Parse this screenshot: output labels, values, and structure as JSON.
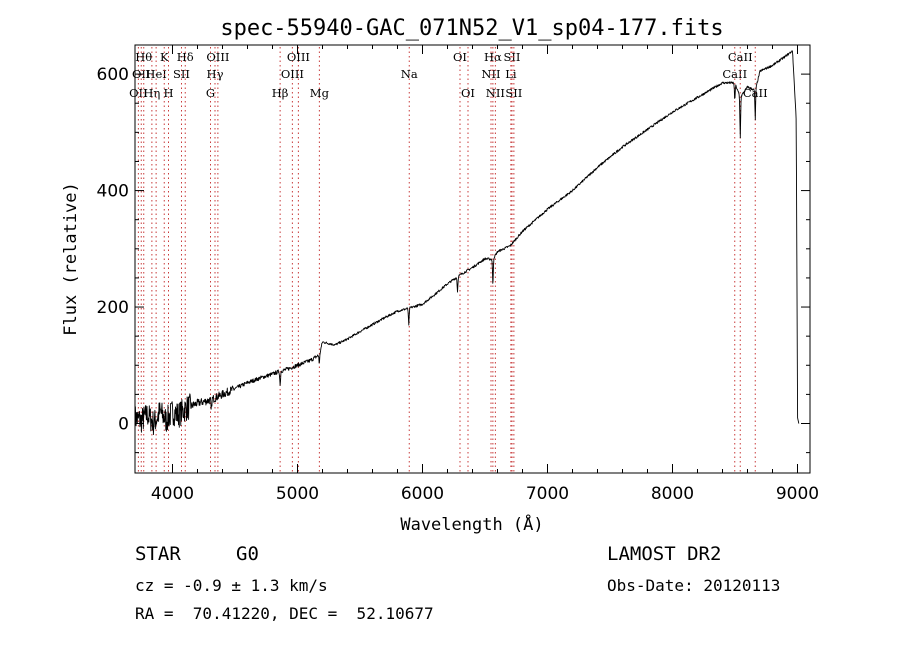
{
  "chart_data": {
    "type": "line",
    "title": "spec-55940-GAC_071N52_V1_sp04-177.fits",
    "xlabel": "Wavelength (Å)",
    "ylabel": "Flux (relative)",
    "xlim": [
      3700,
      9100
    ],
    "ylim": [
      -85,
      650
    ],
    "x_ticks": [
      4000,
      5000,
      6000,
      7000,
      8000,
      9000
    ],
    "x_tick_labels": [
      "4000",
      "5000",
      "6000",
      "7000",
      "8000",
      "9000"
    ],
    "y_ticks": [
      0,
      200,
      400,
      600
    ],
    "y_tick_labels": [
      "0",
      "200",
      "400",
      "600"
    ],
    "series": [
      {
        "name": "flux",
        "x": [
          3700,
          3750,
          3800,
          3850,
          3900,
          3950,
          4000,
          4050,
          4100,
          4150,
          4200,
          4300,
          4400,
          4500,
          4600,
          4700,
          4800,
          4861,
          4900,
          5000,
          5100,
          5175,
          5200,
          5300,
          5400,
          5500,
          5600,
          5700,
          5800,
          5890,
          6000,
          6100,
          6200,
          6300,
          6400,
          6500,
          6563,
          6600,
          6700,
          6800,
          7000,
          7200,
          7400,
          7600,
          7800,
          8000,
          8200,
          8400,
          8498,
          8542,
          8600,
          8662,
          8700,
          8800,
          8900,
          8960,
          8990,
          9000,
          9010
        ],
        "y": [
          10,
          5,
          15,
          0,
          20,
          5,
          20,
          15,
          25,
          30,
          35,
          40,
          50,
          60,
          70,
          78,
          85,
          90,
          92,
          100,
          108,
          118,
          140,
          135,
          145,
          158,
          170,
          182,
          193,
          198,
          205,
          222,
          240,
          255,
          268,
          283,
          282,
          295,
          305,
          330,
          368,
          400,
          440,
          475,
          505,
          535,
          560,
          585,
          585,
          560,
          578,
          572,
          605,
          615,
          630,
          640,
          520,
          10,
          0
        ]
      }
    ],
    "absorption_dips": [
      {
        "x": 4310,
        "depth": 20
      },
      {
        "x": 4861,
        "depth": 25
      },
      {
        "x": 5175,
        "depth": 15
      },
      {
        "x": 5890,
        "depth": 30
      },
      {
        "x": 6280,
        "depth": 25
      },
      {
        "x": 6563,
        "depth": 45
      },
      {
        "x": 8498,
        "depth": 30
      },
      {
        "x": 8542,
        "depth": 70
      },
      {
        "x": 8662,
        "depth": 50
      }
    ],
    "line_markers": [
      {
        "x": 3727,
        "label": "OII",
        "row": 3
      },
      {
        "x": 3750,
        "label": "OII",
        "row": 2
      },
      {
        "x": 3770,
        "label": "Hθ",
        "row": 1
      },
      {
        "x": 3835,
        "label": "Hη",
        "row": 3
      },
      {
        "x": 3869,
        "label": "HeI",
        "row": 2
      },
      {
        "x": 3934,
        "label": "K",
        "row": 1
      },
      {
        "x": 3968,
        "label": "H",
        "row": 3
      },
      {
        "x": 4072,
        "label": "SII",
        "row": 2
      },
      {
        "x": 4102,
        "label": "Hδ",
        "row": 1
      },
      {
        "x": 4304,
        "label": "G",
        "row": 3
      },
      {
        "x": 4340,
        "label": "Hγ",
        "row": 2
      },
      {
        "x": 4363,
        "label": "OIII",
        "row": 1
      },
      {
        "x": 4861,
        "label": "Hβ",
        "row": 3
      },
      {
        "x": 4959,
        "label": "OIII",
        "row": 2
      },
      {
        "x": 5007,
        "label": "OIII",
        "row": 1
      },
      {
        "x": 5175,
        "label": "Mg",
        "row": 3
      },
      {
        "x": 5894,
        "label": "Na",
        "row": 2
      },
      {
        "x": 6300,
        "label": "OI",
        "row": 1
      },
      {
        "x": 6364,
        "label": "OI",
        "row": 3
      },
      {
        "x": 6548,
        "label": "NII",
        "row": 2
      },
      {
        "x": 6563,
        "label": "Hα",
        "row": 1
      },
      {
        "x": 6583,
        "label": "NII",
        "row": 3
      },
      {
        "x": 6707,
        "label": "Li",
        "row": 2
      },
      {
        "x": 6716,
        "label": "SII",
        "row": 1
      },
      {
        "x": 6731,
        "label": "SII",
        "row": 3
      },
      {
        "x": 8498,
        "label": "CaII",
        "row": 2
      },
      {
        "x": 8542,
        "label": "CaII",
        "row": 1
      },
      {
        "x": 8662,
        "label": "CaII",
        "row": 3
      }
    ]
  },
  "info": {
    "class": "STAR",
    "subclass": "G0",
    "survey": "LAMOST DR2",
    "redshift": "cz = -0.9 ± 1.3 km/s",
    "obs_date": "Obs-Date: 20120113",
    "coords": "RA =  70.41220, DEC =  52.10677"
  }
}
